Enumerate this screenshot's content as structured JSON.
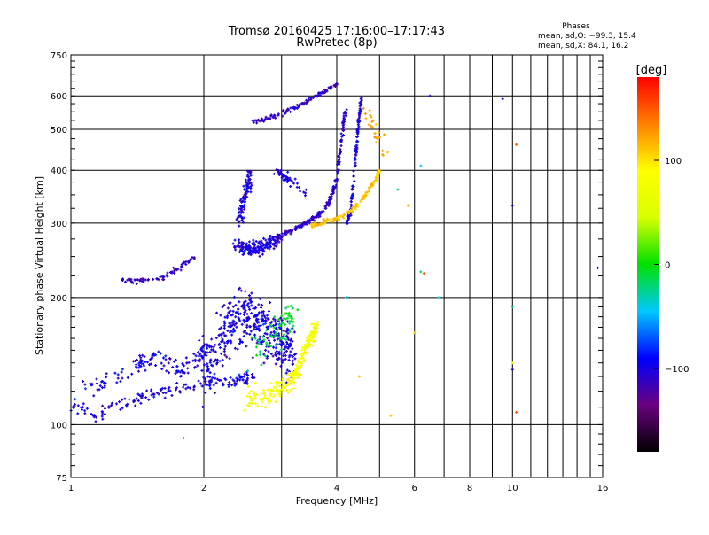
{
  "chart_data": {
    "type": "scatter",
    "title": "Tromsø 20160425 17:16:00–17:17:43",
    "subtitle": "RwPretec (8p)",
    "xlabel": "Frequency [MHz]",
    "ylabel": "Stationary phase Virtual Height [km]",
    "x_scale": "log",
    "y_scale": "log",
    "xlim": [
      1,
      16
    ],
    "ylim": [
      75,
      750
    ],
    "x_ticks": [
      1,
      2,
      4,
      6,
      8,
      10,
      16
    ],
    "x_tick_labels": [
      "1",
      "2",
      "4",
      "6",
      "8",
      "10",
      "16"
    ],
    "y_ticks": [
      75,
      100,
      200,
      300,
      400,
      500,
      600,
      750
    ],
    "y_tick_labels": [
      "75",
      "100",
      "200",
      "300",
      "400",
      "500",
      "600",
      "750"
    ],
    "grid": true,
    "info": {
      "heading": "Phases",
      "line1": "mean, sd,O: −99.3, 15.4",
      "line2": "mean, sd,X:  84.1, 16.2"
    },
    "colorbar": {
      "label": "[deg]",
      "range": [
        -180,
        180
      ],
      "ticks": [
        -100,
        0,
        100
      ],
      "tick_labels": [
        "−100",
        "0",
        "100"
      ],
      "colormap": [
        "#000000",
        "#6a0080",
        "#0000ff",
        "#00c8ff",
        "#00e000",
        "#d8ff00",
        "#ffff00",
        "#ff8000",
        "#ff0000"
      ]
    },
    "traces": [
      {
        "name": "",
        "phase": -100,
        "points": [
          [
            1.0,
            108
          ],
          [
            1.05,
            112
          ],
          [
            1.1,
            105
          ],
          [
            1.15,
            104
          ],
          [
            1.2,
            110
          ],
          [
            1.3,
            112
          ],
          [
            1.4,
            115
          ],
          [
            1.5,
            118
          ],
          [
            1.6,
            120
          ],
          [
            1.7,
            121
          ],
          [
            1.8,
            122
          ],
          [
            1.9,
            123
          ],
          [
            2.0,
            124
          ],
          [
            2.1,
            125
          ],
          [
            2.2,
            126
          ],
          [
            2.3,
            127
          ],
          [
            2.4,
            128
          ],
          [
            2.5,
            129
          ],
          [
            2.6,
            130
          ]
        ],
        "spread_x": 0.05,
        "spread_y": 6,
        "count": 160
      },
      {
        "name": "",
        "phase": -100,
        "points": [
          [
            1.05,
            120
          ],
          [
            1.2,
            125
          ],
          [
            1.35,
            135
          ],
          [
            1.45,
            140
          ],
          [
            1.55,
            145
          ],
          [
            1.65,
            140
          ],
          [
            1.75,
            135
          ],
          [
            1.85,
            140
          ],
          [
            1.95,
            145
          ],
          [
            2.05,
            150
          ]
        ],
        "spread_x": 0.05,
        "spread_y": 10,
        "count": 140
      },
      {
        "name": "",
        "phase": -100,
        "points": [
          [
            2.0,
            130
          ],
          [
            2.1,
            145
          ],
          [
            2.2,
            160
          ],
          [
            2.3,
            175
          ],
          [
            2.4,
            185
          ],
          [
            2.5,
            180
          ],
          [
            2.6,
            175
          ],
          [
            2.7,
            170
          ],
          [
            2.8,
            165
          ],
          [
            2.9,
            160
          ],
          [
            3.0,
            155
          ],
          [
            3.1,
            150
          ],
          [
            3.2,
            148
          ]
        ],
        "spread_x": 0.12,
        "spread_y": 35,
        "count": 420
      },
      {
        "name": "",
        "phase": -10,
        "points": [
          [
            2.6,
            150
          ],
          [
            2.8,
            160
          ],
          [
            3.0,
            170
          ],
          [
            3.2,
            175
          ]
        ],
        "spread_x": 0.12,
        "spread_y": 25,
        "count": 70
      },
      {
        "name": "",
        "phase": 80,
        "points": [
          [
            2.5,
            115
          ],
          [
            2.7,
            117
          ],
          [
            2.9,
            120
          ],
          [
            3.1,
            125
          ],
          [
            3.2,
            130
          ],
          [
            3.3,
            140
          ],
          [
            3.4,
            150
          ],
          [
            3.5,
            160
          ],
          [
            3.6,
            170
          ]
        ],
        "spread_x": 0.08,
        "spread_y": 10,
        "count": 230
      },
      {
        "name": "",
        "phase": -110,
        "points": [
          [
            1.3,
            220
          ],
          [
            1.4,
            219
          ],
          [
            1.5,
            220
          ],
          [
            1.6,
            222
          ],
          [
            1.7,
            230
          ],
          [
            1.8,
            240
          ],
          [
            1.9,
            250
          ]
        ],
        "spread_x": 0.04,
        "spread_y": 4,
        "count": 70
      },
      {
        "name": "",
        "phase": -100,
        "points": [
          [
            2.35,
            265
          ],
          [
            2.45,
            262
          ],
          [
            2.55,
            260
          ],
          [
            2.65,
            262
          ],
          [
            2.75,
            265
          ],
          [
            2.85,
            268
          ],
          [
            2.95,
            275
          ]
        ],
        "spread_x": 0.06,
        "spread_y": 15,
        "count": 170
      },
      {
        "name": "",
        "phase": -100,
        "points": [
          [
            2.4,
            300
          ],
          [
            2.45,
            330
          ],
          [
            2.5,
            360
          ],
          [
            2.55,
            390
          ]
        ],
        "spread_x": 0.05,
        "spread_y": 30,
        "count": 90
      },
      {
        "name": "",
        "phase": -110,
        "points": [
          [
            2.9,
            275
          ],
          [
            3.0,
            280
          ],
          [
            3.1,
            285
          ],
          [
            3.2,
            290
          ],
          [
            3.3,
            295
          ],
          [
            3.4,
            300
          ],
          [
            3.5,
            305
          ],
          [
            3.6,
            310
          ],
          [
            3.7,
            318
          ],
          [
            3.8,
            330
          ],
          [
            3.9,
            350
          ],
          [
            4.0,
            380
          ],
          [
            4.05,
            420
          ],
          [
            4.1,
            470
          ],
          [
            4.15,
            520
          ],
          [
            4.2,
            560
          ]
        ],
        "spread_x": 0.04,
        "spread_y": 6,
        "count": 210
      },
      {
        "name": "",
        "phase": -100,
        "points": [
          [
            4.2,
            300
          ],
          [
            4.3,
            320
          ],
          [
            4.35,
            360
          ],
          [
            4.4,
            420
          ],
          [
            4.45,
            480
          ],
          [
            4.5,
            540
          ],
          [
            4.55,
            600
          ]
        ],
        "spread_x": 0.03,
        "spread_y": 10,
        "count": 120
      },
      {
        "name": "",
        "phase": 110,
        "points": [
          [
            3.5,
            295
          ],
          [
            3.7,
            300
          ],
          [
            3.9,
            305
          ],
          [
            4.1,
            310
          ],
          [
            4.3,
            320
          ],
          [
            4.5,
            335
          ],
          [
            4.7,
            355
          ],
          [
            4.9,
            380
          ],
          [
            5.0,
            400
          ]
        ],
        "spread_x": 0.05,
        "spread_y": 6,
        "count": 140
      },
      {
        "name": "",
        "phase": -110,
        "points": [
          [
            2.6,
            520
          ],
          [
            2.8,
            530
          ],
          [
            3.0,
            545
          ],
          [
            3.2,
            560
          ],
          [
            3.4,
            580
          ],
          [
            3.6,
            600
          ],
          [
            3.8,
            620
          ],
          [
            4.0,
            640
          ]
        ],
        "spread_x": 0.05,
        "spread_y": 10,
        "count": 110
      },
      {
        "name": "",
        "phase": -100,
        "points": [
          [
            2.9,
            400
          ],
          [
            3.0,
            390
          ],
          [
            3.1,
            380
          ],
          [
            3.2,
            370
          ],
          [
            3.4,
            350
          ]
        ],
        "spread_x": 0.08,
        "spread_y": 15,
        "count": 45
      },
      {
        "name": "",
        "phase": 120,
        "points": [
          [
            4.6,
            560
          ],
          [
            4.8,
            520
          ],
          [
            5.0,
            480
          ],
          [
            5.2,
            440
          ]
        ],
        "spread_x": 0.15,
        "spread_y": 40,
        "count": 25
      }
    ],
    "scattered_points": [
      [
        6.5,
        600,
        -100
      ],
      [
        9.5,
        590,
        -100
      ],
      [
        10.2,
        460,
        150
      ],
      [
        10.0,
        330,
        -110
      ],
      [
        15.6,
        235,
        -100
      ],
      [
        10.0,
        190,
        -20
      ],
      [
        10.0,
        140,
        80
      ],
      [
        10.2,
        107,
        150
      ],
      [
        6.2,
        230,
        -20
      ],
      [
        6.3,
        228,
        150
      ],
      [
        6.8,
        200,
        -40
      ],
      [
        5.3,
        105,
        110
      ],
      [
        6.0,
        165,
        110
      ],
      [
        1.8,
        93,
        150
      ],
      [
        4.2,
        200,
        -40
      ],
      [
        10.0,
        135,
        -110
      ],
      [
        5.5,
        360,
        -20
      ],
      [
        5.8,
        330,
        120
      ],
      [
        6.2,
        410,
        -40
      ],
      [
        4.5,
        130,
        110
      ]
    ]
  }
}
